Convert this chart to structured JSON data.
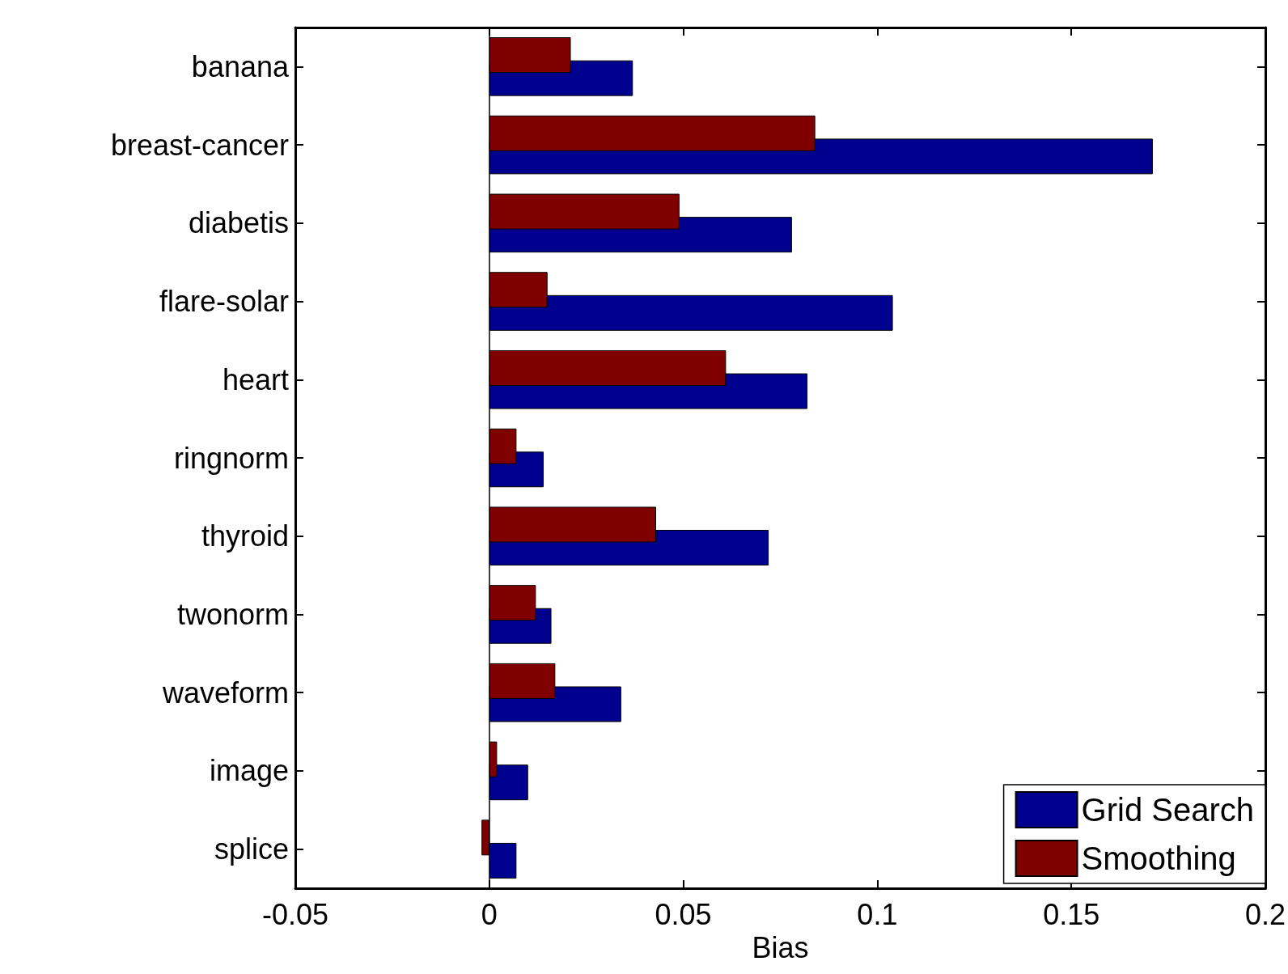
{
  "chart_data": {
    "type": "bar",
    "orientation": "horizontal",
    "xlabel": "Bias",
    "categories": [
      "banana",
      "breast-cancer",
      "diabetis",
      "flare-solar",
      "heart",
      "ringnorm",
      "thyroid",
      "twonorm",
      "waveform",
      "image",
      "splice"
    ],
    "series": [
      {
        "name": "Grid Search",
        "color": "#00008f",
        "values": [
          0.037,
          0.171,
          0.078,
          0.104,
          0.082,
          0.014,
          0.072,
          0.016,
          0.034,
          0.01,
          0.007
        ]
      },
      {
        "name": "Smoothing",
        "color": "#800000",
        "values": [
          0.021,
          0.084,
          0.049,
          0.015,
          0.061,
          0.007,
          0.043,
          0.012,
          0.017,
          0.002,
          -0.002
        ]
      }
    ],
    "xlim": [
      -0.05,
      0.2
    ],
    "xticks": [
      -0.05,
      0,
      0.05,
      0.1,
      0.15,
      0.2
    ],
    "ref_lines": [
      {
        "axis": "x",
        "value": 0
      }
    ],
    "grid": false,
    "legend": "bottom right"
  }
}
